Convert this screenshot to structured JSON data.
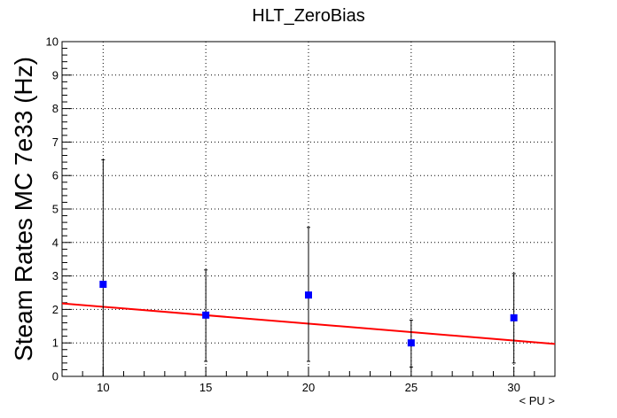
{
  "chart_data": {
    "type": "scatter",
    "title": "HLT_ZeroBias",
    "xlabel": "< PU >",
    "ylabel": "Steam Rates MC 7e33 (Hz)",
    "xlim": [
      8,
      32
    ],
    "ylim": [
      0,
      10
    ],
    "x_ticks": [
      10,
      15,
      20,
      25,
      30
    ],
    "y_ticks": [
      0,
      1,
      2,
      3,
      4,
      5,
      6,
      7,
      8,
      9,
      10
    ],
    "grid": true,
    "points": [
      {
        "x": 10,
        "y": 2.75,
        "y_low": 0.0,
        "y_high": 6.47
      },
      {
        "x": 15,
        "y": 1.83,
        "y_low": 0.45,
        "y_high": 3.18
      },
      {
        "x": 20,
        "y": 2.43,
        "y_low": 0.45,
        "y_high": 4.45
      },
      {
        "x": 25,
        "y": 1.0,
        "y_low": 0.28,
        "y_high": 1.68
      },
      {
        "x": 30,
        "y": 1.75,
        "y_low": 0.4,
        "y_high": 3.07
      }
    ],
    "fit": {
      "x_start": 8,
      "y_start": 2.18,
      "x_end": 32,
      "y_end": 0.97,
      "color": "#ff0000"
    },
    "marker_color": "#0000ff"
  }
}
